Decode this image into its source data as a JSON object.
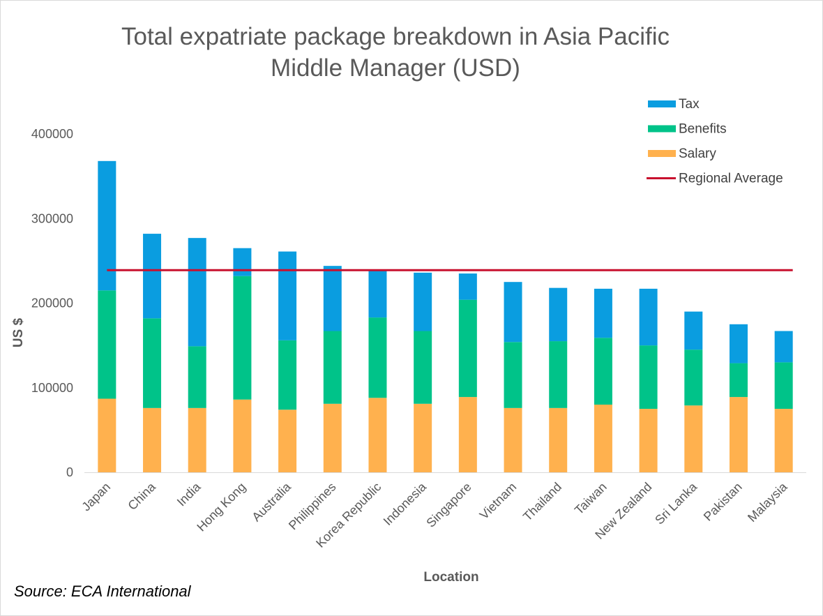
{
  "chart_data": {
    "type": "bar",
    "stacked": true,
    "title_lines": [
      "Total expatriate package breakdown in Asia Pacific",
      "Middle Manager (USD)"
    ],
    "xlabel": "Location",
    "ylabel": "US $",
    "ylim": [
      0,
      400000
    ],
    "yticks": [
      0,
      100000,
      200000,
      300000,
      400000
    ],
    "ytick_labels": [
      "0",
      "100000",
      "200000",
      "300000",
      "400000"
    ],
    "grid": false,
    "legend_position": "top-right",
    "categories": [
      "Japan",
      "China",
      "India",
      "Hong Kong",
      "Australia",
      "Philippines",
      "Korea Republic",
      "Indonesia",
      "Singapore",
      "Vietnam",
      "Thailand",
      "Taiwan",
      "New Zealand",
      "Sri Lanka",
      "Pakistan",
      "Malaysia"
    ],
    "series": [
      {
        "name": "Salary",
        "color": "#FFB14E",
        "values": [
          87000,
          76000,
          76000,
          86000,
          74000,
          81000,
          88000,
          81000,
          89000,
          76000,
          76000,
          80000,
          75000,
          79000,
          89000,
          75000
        ]
      },
      {
        "name": "Benefits",
        "color": "#00C389",
        "values": [
          128000,
          106000,
          73000,
          146000,
          82000,
          86000,
          95000,
          86000,
          115000,
          78000,
          79000,
          79000,
          75000,
          66000,
          40000,
          55000
        ]
      },
      {
        "name": "Tax",
        "color": "#0A9DE0",
        "values": [
          153000,
          100000,
          128000,
          33000,
          105000,
          77000,
          56000,
          69000,
          31000,
          71000,
          63000,
          58000,
          67000,
          45000,
          46000,
          37000
        ]
      }
    ],
    "reference_line": {
      "name": "Regional Average",
      "color": "#C8102E",
      "value": 239000
    },
    "legend": [
      {
        "name": "Tax",
        "color": "#0A9DE0",
        "kind": "box"
      },
      {
        "name": "Benefits",
        "color": "#00C389",
        "kind": "box"
      },
      {
        "name": "Salary",
        "color": "#FFB14E",
        "kind": "box"
      },
      {
        "name": "Regional Average",
        "color": "#C8102E",
        "kind": "line"
      }
    ],
    "source": "Source: ECA International"
  }
}
